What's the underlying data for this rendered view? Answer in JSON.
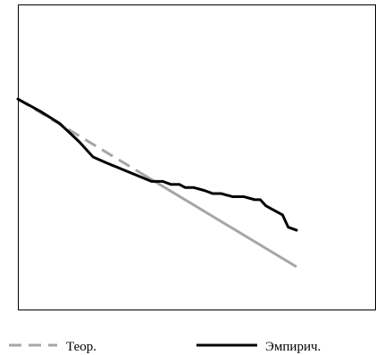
{
  "chart_data": {
    "type": "line",
    "title": "",
    "xlabel": "",
    "ylabel": "",
    "xlim": [
      0,
      100
    ],
    "ylim": [
      0,
      100
    ],
    "grid": false,
    "legend_placement": "bottom",
    "series": [
      {
        "name": "Теор.",
        "color": "#a6a6a6",
        "style": "dashed-then-solid",
        "x": [
          0,
          100
        ],
        "y": [
          69,
          14
        ]
      },
      {
        "name": "Эмпирич.",
        "color": "#000000",
        "style": "solid",
        "x": [
          0,
          8,
          15,
          22,
          27,
          32,
          40,
          48,
          52,
          55,
          58,
          60,
          63,
          67,
          70,
          73,
          77,
          81,
          85,
          87,
          89,
          91,
          93,
          95,
          97,
          100
        ],
        "y": [
          69,
          65,
          61,
          55,
          50,
          48,
          45,
          42,
          42,
          41,
          41,
          40,
          40,
          39,
          38,
          38,
          37,
          37,
          36,
          36,
          34,
          33,
          32,
          31,
          27,
          26
        ]
      }
    ]
  }
}
